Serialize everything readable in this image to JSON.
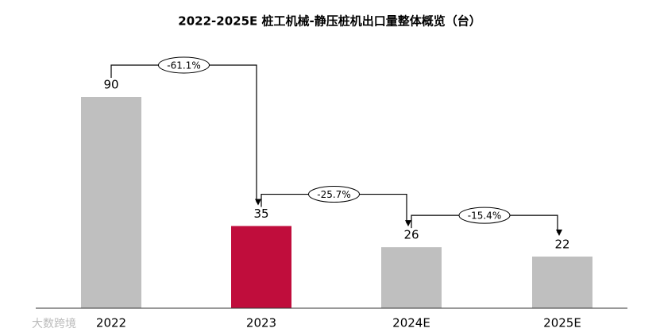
{
  "chart_data": {
    "type": "bar",
    "title": "2022-2025E 桩工机械-静压桩机出口量整体概览（台）",
    "categories": [
      "2022",
      "2023",
      "2024E",
      "2025E"
    ],
    "values": [
      90,
      35,
      26,
      22
    ],
    "colors": [
      "#bfbfbf",
      "#c00d3c",
      "#bfbfbf",
      "#bfbfbf"
    ],
    "annotations": [
      "-61.1%",
      "-25.7%",
      "-15.4%"
    ],
    "watermark": "大数跨境"
  }
}
